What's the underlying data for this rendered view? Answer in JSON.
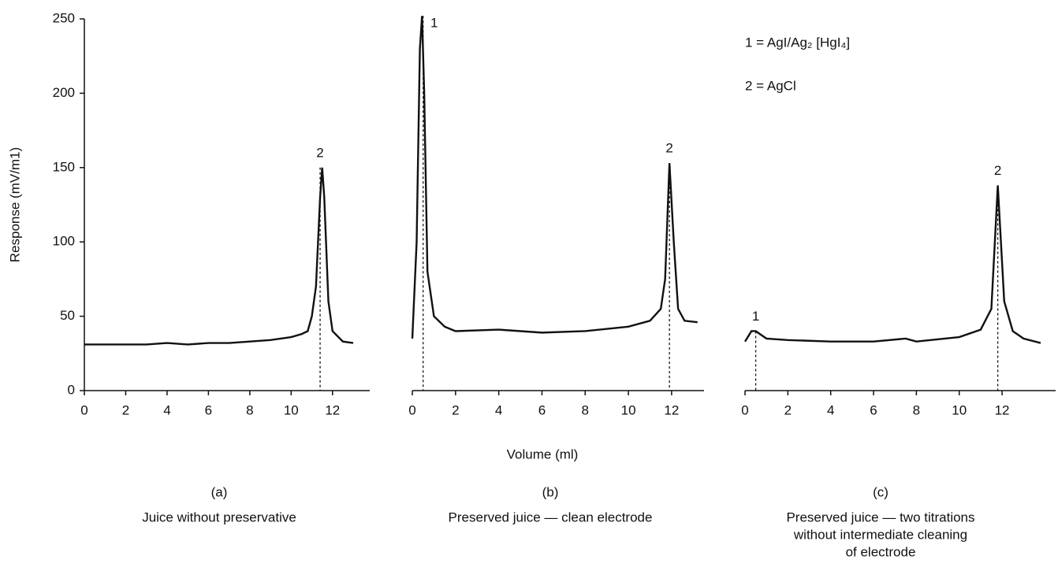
{
  "chart_data": [
    {
      "type": "line",
      "caption": "(a)",
      "subtitle": [
        "Juice without preservative"
      ],
      "x": [
        0,
        1,
        2,
        3,
        4,
        5,
        6,
        7,
        8,
        9,
        10,
        10.5,
        10.8,
        11,
        11.2,
        11.4,
        11.5,
        11.6,
        11.8,
        12,
        12.5,
        13
      ],
      "series": [
        {
          "color": "#111",
          "values": [
            31,
            31,
            31,
            31,
            32,
            31,
            32,
            32,
            33,
            34,
            36,
            38,
            40,
            50,
            70,
            130,
            150,
            130,
            60,
            40,
            33,
            32
          ]
        }
      ],
      "xlim": [
        0,
        13.8
      ],
      "xticks": [
        0,
        2,
        4,
        6,
        8,
        10,
        12
      ],
      "ylim": [
        0,
        250
      ],
      "yticks": [
        0,
        50,
        100,
        150,
        200,
        250
      ],
      "ylabel": "Response (mV/m1)",
      "peaks": [
        {
          "label": "2",
          "x": 11.4,
          "y": 150
        }
      ]
    },
    {
      "type": "line",
      "caption": "(b)",
      "subtitle": [
        "Preserved juice — clean electrode"
      ],
      "x": [
        0,
        0.2,
        0.35,
        0.45,
        0.55,
        0.7,
        1,
        1.5,
        2,
        4,
        6,
        8,
        10,
        11,
        11.5,
        11.7,
        11.9,
        12.1,
        12.3,
        12.6,
        13.2
      ],
      "series": [
        {
          "color": "#111",
          "values": [
            35,
            100,
            230,
            252,
            200,
            80,
            50,
            43,
            40,
            41,
            39,
            40,
            43,
            47,
            55,
            75,
            153,
            100,
            55,
            47,
            46
          ]
        }
      ],
      "xlim": [
        0,
        13.5
      ],
      "xticks": [
        0,
        2,
        4,
        6,
        8,
        10,
        12
      ],
      "ylim": [
        0,
        250
      ],
      "xlabel": "Volume (ml)",
      "peaks": [
        {
          "label": "1",
          "x": 0.5,
          "y": 252
        },
        {
          "label": "2",
          "x": 11.9,
          "y": 153
        }
      ],
      "legend": [
        "1 = AgI/Ag₂ [HgI₄]",
        "2 = AgCl"
      ]
    },
    {
      "type": "line",
      "caption": "(c)",
      "subtitle": [
        "Preserved juice — two titrations",
        "without intermediate cleaning",
        "of electrode"
      ],
      "x": [
        0,
        0.3,
        0.5,
        1,
        2,
        4,
        6,
        7.5,
        8,
        10,
        11,
        11.5,
        11.8,
        12.1,
        12.5,
        13,
        13.8
      ],
      "series": [
        {
          "color": "#111",
          "values": [
            33,
            40,
            40,
            35,
            34,
            33,
            33,
            35,
            33,
            36,
            41,
            55,
            138,
            60,
            40,
            35,
            32
          ]
        }
      ],
      "xlim": [
        0,
        14.5
      ],
      "xticks": [
        0,
        2,
        4,
        6,
        8,
        10,
        12
      ],
      "ylim": [
        0,
        250
      ],
      "peaks": [
        {
          "label": "1",
          "x": 0.5,
          "y": 40
        },
        {
          "label": "2",
          "x": 11.8,
          "y": 138
        }
      ]
    }
  ]
}
